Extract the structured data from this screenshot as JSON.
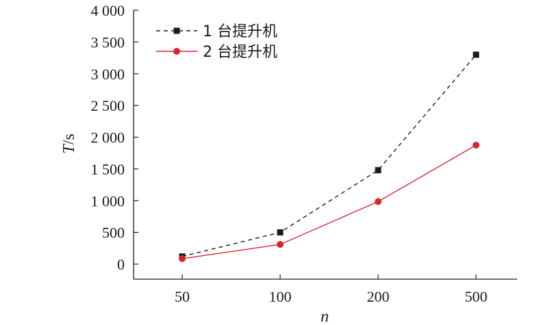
{
  "chart_data": {
    "type": "line",
    "categories": [
      "50",
      "100",
      "200",
      "500"
    ],
    "series": [
      {
        "name": "1 台提升机",
        "values": [
          120,
          500,
          1480,
          3300
        ],
        "color": "#1a1a1a",
        "line_style": "dashed",
        "marker": "square"
      },
      {
        "name": "2 台提升机",
        "values": [
          85,
          310,
          985,
          1875
        ],
        "color": "#d9252f",
        "line_style": "solid",
        "marker": "circle"
      }
    ],
    "xlabel": "n",
    "ylabel_symbol": "T",
    "ylabel_unit": "/s",
    "ylim": [
      0,
      4000
    ],
    "yticks": [
      0,
      500,
      1000,
      1500,
      2000,
      2500,
      3000,
      3500,
      4000
    ],
    "ytick_labels": [
      "0",
      "500",
      "1 000",
      "1 500",
      "2 000",
      "2 500",
      "3 000",
      "3 500",
      "4 000"
    ],
    "grid": false,
    "legend_position": "top-left"
  }
}
